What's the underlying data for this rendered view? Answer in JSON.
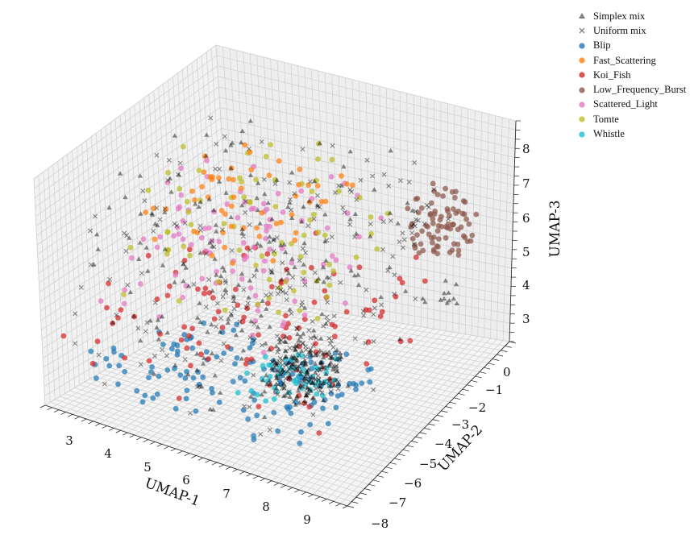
{
  "chart_data": {
    "type": "scatter",
    "projection": "3d",
    "xlabel": "UMAP-1",
    "ylabel": "UMAP-2",
    "zlabel": "UMAP-3",
    "xlim": [
      2.5,
      9.5
    ],
    "ylim": [
      -8,
      0.5
    ],
    "zlim": [
      2.5,
      8.5
    ],
    "x_ticks": [
      "3",
      "4",
      "5",
      "6",
      "7",
      "8",
      "9"
    ],
    "y_ticks": [
      "0",
      "−1",
      "−2",
      "−3",
      "−4",
      "−5",
      "−6",
      "−7",
      "−8"
    ],
    "z_ticks": [
      "3",
      "4",
      "5",
      "6",
      "7",
      "8"
    ],
    "grid": true,
    "legend_position": "top-right",
    "series": [
      {
        "name": "Simplex mix",
        "marker": "triangle",
        "color": "#000000",
        "clusters": [
          {
            "x": [
              2.6,
              8.0
            ],
            "y": [
              -7.5,
              -0.5
            ],
            "z": [
              3.0,
              8.3
            ],
            "n": 200
          },
          {
            "x": [
              5.8,
              7.2
            ],
            "y": [
              -4.8,
              -3.0
            ],
            "z": [
              2.6,
              3.8
            ],
            "n": 120
          },
          {
            "x": [
              8.3,
              9.0
            ],
            "y": [
              -2.0,
              -0.5
            ],
            "z": [
              4.0,
              4.8
            ],
            "n": 12
          }
        ]
      },
      {
        "name": "Uniform mix",
        "marker": "x",
        "color": "#000000",
        "clusters": [
          {
            "x": [
              2.6,
              8.2
            ],
            "y": [
              -7.5,
              -0.5
            ],
            "z": [
              3.0,
              8.3
            ],
            "n": 180
          },
          {
            "x": [
              5.8,
              7.2
            ],
            "y": [
              -4.8,
              -3.0
            ],
            "z": [
              2.6,
              3.8
            ],
            "n": 90
          },
          {
            "x": [
              7.2,
              8.6
            ],
            "y": [
              -2.5,
              -0.5
            ],
            "z": [
              5.8,
              7.2
            ],
            "n": 20
          }
        ]
      },
      {
        "name": "Blip",
        "marker": "circle",
        "color": "#1f77b4",
        "clusters": [
          {
            "x": [
              2.8,
              8.0
            ],
            "y": [
              -7.0,
              -2.5
            ],
            "z": [
              2.6,
              3.6
            ],
            "n": 130
          }
        ]
      },
      {
        "name": "Fast_Scattering",
        "marker": "circle",
        "color": "#ff7f0e",
        "clusters": [
          {
            "x": [
              3.5,
              7.2
            ],
            "y": [
              -6.5,
              -1.5
            ],
            "z": [
              7.0,
              8.0
            ],
            "n": 55
          }
        ]
      },
      {
        "name": "Koi_Fish",
        "marker": "circle",
        "color": "#d62728",
        "clusters": [
          {
            "x": [
              2.6,
              8.5
            ],
            "y": [
              -7.5,
              -1.0
            ],
            "z": [
              3.2,
              5.5
            ],
            "n": 110
          }
        ]
      },
      {
        "name": "Low_Frequency_Burst",
        "marker": "circle",
        "color": "#8c564b",
        "clusters": [
          {
            "x": [
              7.8,
              9.0
            ],
            "y": [
              -1.5,
              0.0
            ],
            "z": [
              5.5,
              7.0
            ],
            "n": 80
          }
        ]
      },
      {
        "name": "Scattered_Light",
        "marker": "circle",
        "color": "#e377c2",
        "clusters": [
          {
            "x": [
              3.0,
              7.5
            ],
            "y": [
              -6.5,
              -1.5
            ],
            "z": [
              4.8,
              7.8
            ],
            "n": 95
          }
        ]
      },
      {
        "name": "Tomte",
        "marker": "circle",
        "color": "#bcbd22",
        "clusters": [
          {
            "x": [
              3.0,
              7.5
            ],
            "y": [
              -6.5,
              -0.5
            ],
            "z": [
              5.0,
              8.2
            ],
            "n": 75
          }
        ]
      },
      {
        "name": "Whistle",
        "marker": "circle",
        "color": "#17becf",
        "clusters": [
          {
            "x": [
              5.5,
              7.3
            ],
            "y": [
              -5.0,
              -3.0
            ],
            "z": [
              2.6,
              3.3
            ],
            "n": 50
          }
        ]
      }
    ]
  }
}
